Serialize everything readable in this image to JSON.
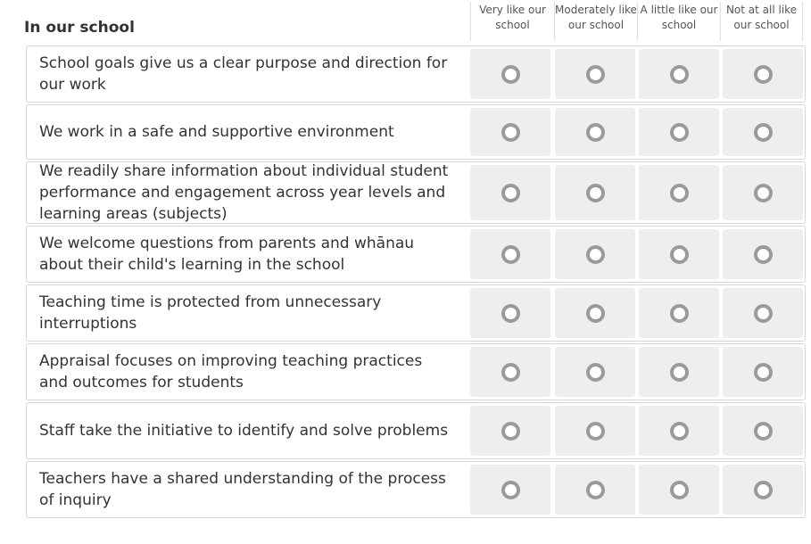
{
  "section_title": "In our school",
  "columns": [
    {
      "line1": "Very like our",
      "line2": "school"
    },
    {
      "line1": "Moderately like",
      "line2": "our school"
    },
    {
      "line1": "A little like our",
      "line2": "school"
    },
    {
      "line1": "Not at all like",
      "line2": "our school"
    }
  ],
  "statements": [
    "School goals give us a clear purpose and direction for our work",
    "We work in a safe and supportive environment",
    "We readily share information about individual student performance and engagement across year levels and learning areas (subjects)",
    "We welcome questions from parents and whānau about their child's learning in the school",
    "Teaching time is protected from unnecessary interruptions",
    "Appraisal focuses on improving teaching practices and outcomes for students",
    "Staff take the initiative to identify and solve problems",
    "Teachers have a shared understanding of the process of inquiry"
  ],
  "radio_icon": "radio-unselected-icon",
  "colors": {
    "cell_background": "#eeeeee",
    "radio_ring": "#9a9a9a",
    "row_border": "#d6d6d6"
  }
}
